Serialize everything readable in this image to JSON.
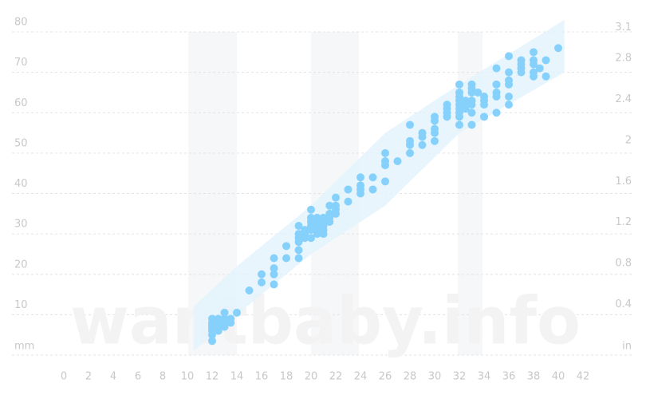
{
  "chart_data": {
    "type": "scatter",
    "watermark": "wantbaby.info",
    "y_label": "mm",
    "y2_label": "in",
    "xlim": [
      0,
      42
    ],
    "xticks": [
      0,
      2,
      4,
      6,
      8,
      10,
      12,
      14,
      16,
      18,
      20,
      22,
      24,
      26,
      28,
      30,
      32,
      34,
      36,
      38,
      40,
      42
    ],
    "ylim": [
      0,
      80
    ],
    "yticks": [
      10,
      20,
      30,
      40,
      50,
      60,
      70,
      80
    ],
    "y2lim": [
      0,
      3.15
    ],
    "y2ticks": [
      0.4,
      0.8,
      1.2,
      1.6,
      2,
      2.4,
      2.8,
      3.1
    ],
    "grid": true,
    "band": {
      "color": "#e2f3fd",
      "x": [
        10.5,
        14,
        20,
        26,
        32,
        40.5
      ],
      "upper": [
        12,
        22,
        37,
        55,
        67,
        83
      ],
      "lower": [
        1,
        10,
        25,
        37,
        55,
        70
      ]
    },
    "color": "#86d1fb",
    "x": [
      12,
      12,
      12,
      12,
      12,
      12,
      12,
      12,
      12.5,
      12.5,
      12.5,
      12.5,
      13,
      13,
      13,
      13,
      13.5,
      13.5,
      14,
      15,
      16,
      16,
      17,
      17,
      17,
      17,
      18,
      18,
      19,
      19,
      19,
      19,
      19,
      19,
      19.5,
      19.5,
      19.5,
      20,
      20,
      20,
      20,
      20,
      20,
      20.5,
      20.5,
      20.5,
      20.5,
      20.5,
      21,
      21,
      21,
      21,
      21,
      21.5,
      21.5,
      21.5,
      21.5,
      22,
      22,
      22,
      22,
      23,
      23,
      24,
      24,
      24,
      24,
      25,
      25,
      26,
      26,
      26,
      26,
      27,
      28,
      28,
      28,
      28,
      29,
      29,
      29,
      30,
      30,
      30,
      30,
      30,
      31,
      31,
      31,
      31,
      32,
      32,
      32,
      32,
      32,
      32,
      32,
      32,
      32,
      32.5,
      32.5,
      32.5,
      33,
      33,
      33,
      33,
      33,
      33,
      33,
      33.5,
      34,
      34,
      34,
      34,
      35,
      35,
      35,
      35,
      35,
      36,
      36,
      36,
      36,
      36,
      36,
      37,
      37,
      37,
      37,
      38,
      38,
      38,
      38,
      38,
      38.5,
      39,
      39,
      40
    ],
    "values": [
      3.5,
      5,
      6,
      7,
      8,
      9,
      6.5,
      7.5,
      6,
      7,
      8,
      9,
      7,
      8,
      9,
      10.5,
      8,
      9,
      10.5,
      16,
      18,
      20,
      17.5,
      20,
      21.5,
      24,
      24,
      27,
      24,
      26,
      28,
      29,
      30,
      32,
      29,
      30,
      31,
      29,
      31,
      32,
      33,
      34,
      36,
      30,
      31,
      32,
      33,
      34,
      30,
      31,
      32,
      33,
      34,
      33,
      34,
      35,
      37,
      35,
      36,
      37,
      39,
      38,
      41,
      40,
      41,
      42,
      44,
      41,
      44,
      43,
      47,
      48,
      50,
      48,
      50,
      52,
      53,
      57,
      52,
      54,
      55,
      53,
      55,
      56,
      58,
      59,
      59,
      60,
      61,
      62,
      57,
      59,
      60,
      61,
      62,
      63,
      64,
      65,
      67,
      61,
      62,
      63,
      57,
      60,
      62,
      63,
      65,
      66,
      67,
      65,
      59,
      62,
      63,
      64,
      60,
      64,
      65,
      67,
      71,
      62,
      64,
      67,
      68,
      70,
      74,
      70,
      71,
      72,
      73,
      69,
      70,
      72,
      73,
      75,
      71,
      69,
      73,
      76
    ]
  }
}
